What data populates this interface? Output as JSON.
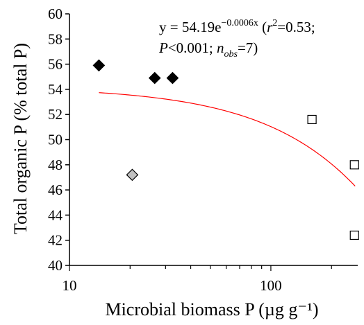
{
  "chart_data": {
    "type": "scatter",
    "xlabel": "Microbial biomass P (µg g⁻¹)",
    "ylabel": "Total organic P (% total P)",
    "x_scale": "log",
    "xlim": [
      10,
      270
    ],
    "ylim": [
      40,
      60
    ],
    "x_tick_labels": [
      "10",
      "100"
    ],
    "y_tick_labels": [
      "40",
      "42",
      "44",
      "46",
      "48",
      "50",
      "52",
      "54",
      "56",
      "58",
      "60"
    ],
    "grid": false,
    "series": [
      {
        "marker": "diamond",
        "fill": "#000000",
        "points": [
          [
            14,
            55.9
          ],
          [
            26.5,
            54.9
          ],
          [
            32.5,
            54.9
          ]
        ]
      },
      {
        "marker": "diamond",
        "fill": "#c0c0c0",
        "points": [
          [
            20.5,
            47.2
          ]
        ]
      },
      {
        "marker": "square",
        "fill": "#ffffff",
        "points": [
          [
            160,
            51.6
          ],
          [
            260,
            48.0
          ],
          [
            260,
            42.4
          ]
        ]
      }
    ],
    "fit": {
      "a": 54.19,
      "b": -0.0006,
      "x_range": [
        14,
        262
      ],
      "color": "#ff0000"
    },
    "annotation": {
      "line1": "y = 54.19e",
      "line1_sup": "−0.0006x",
      "line1_rest_open": " (",
      "r": "r",
      "r_sup": "2",
      "line1_rest_close": "=0.53;",
      "line2_p": "P",
      "line2_mid": "<0.001; ",
      "n": "n",
      "n_sub": "obs",
      "line2_end": "=7)"
    }
  }
}
